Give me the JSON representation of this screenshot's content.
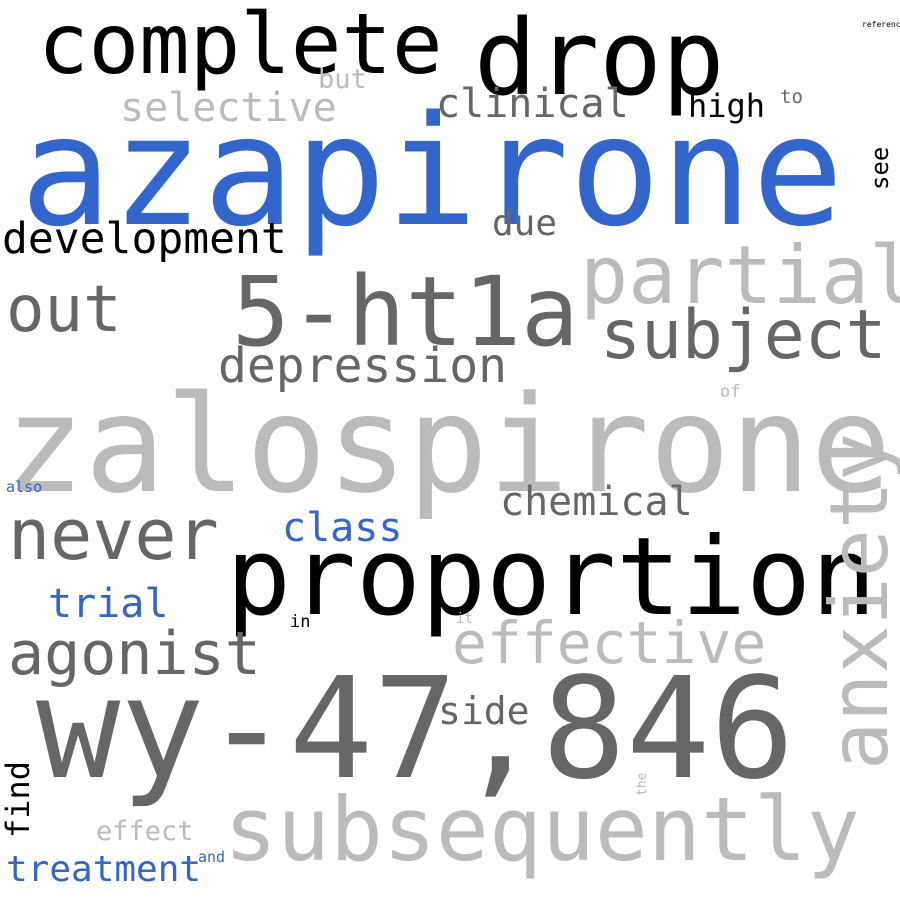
{
  "colors": {
    "background": "#ffffff",
    "black": "#000000",
    "blue": "#3366cc",
    "dark_gray": "#666666",
    "light_gray": "#bbbbbb"
  },
  "words": {
    "complete": "complete",
    "drop": "drop",
    "azapirone": "azapirone",
    "but": "but",
    "selective": "selective",
    "clinical": "clinical",
    "high": "high",
    "to": "to",
    "reference": "reference",
    "see": "see",
    "development": "development",
    "due": "due",
    "partial": "partial",
    "out": "out",
    "5ht1a": "5-ht1a",
    "subject": "subject",
    "depression": "depression",
    "of": "of",
    "zalospirone": "zalospirone",
    "also": "also",
    "chemical": "chemical",
    "never": "never",
    "class": "class",
    "proportion": "proportion",
    "anxiety": "anxiety",
    "trial": "trial",
    "in": "in",
    "it": "it",
    "effective": "effective",
    "agonist": "agonist",
    "wy47846": "wy-47,846",
    "side": "side",
    "find": "find",
    "the": "the",
    "effect": "effect",
    "subsequently": "subsequently",
    "treatment": "treatment",
    "and": "and"
  }
}
